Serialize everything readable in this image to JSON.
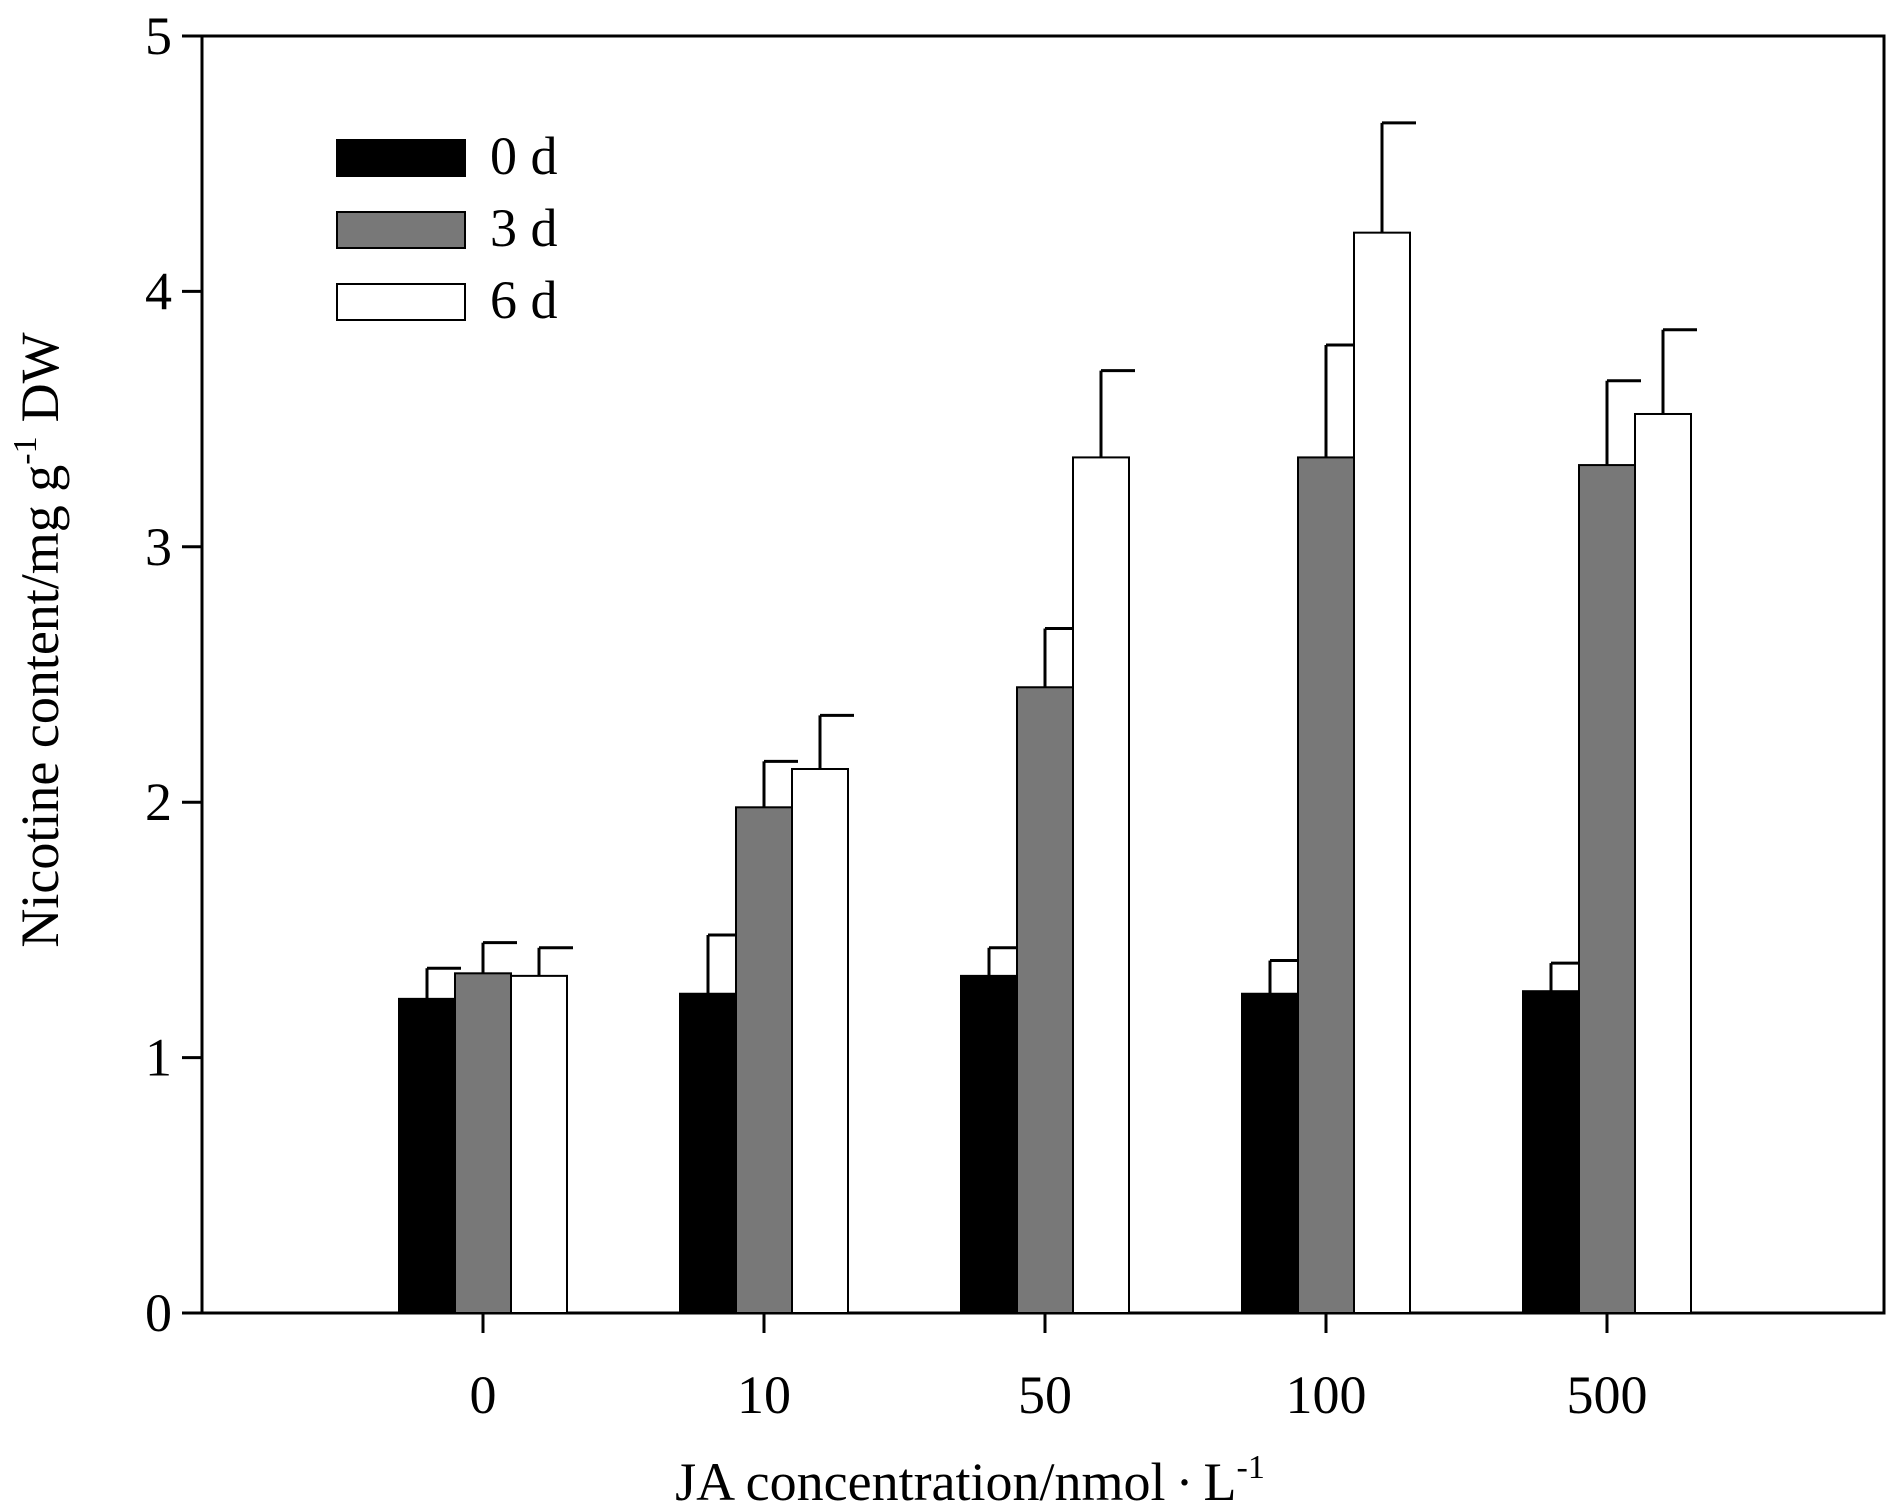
{
  "chart_data": {
    "type": "bar",
    "title": "",
    "xlabel": "JA concentration/nmol",
    "xlabel_unit_symbol": "L",
    "xlabel_unit_exponent": "-1",
    "ylabel": "Nicotine content/mg g",
    "ylabel_exponent": "-1",
    "ylabel_suffix": "DW",
    "ylim": [
      0,
      5
    ],
    "yticks": [
      0,
      1,
      2,
      3,
      4,
      5
    ],
    "categories": [
      "0",
      "10",
      "50",
      "100",
      "500"
    ],
    "legend_position": "top-left",
    "series": [
      {
        "name": "0 d",
        "color": "#000000",
        "values": [
          1.23,
          1.25,
          1.32,
          1.25,
          1.26
        ],
        "errors": [
          0.12,
          0.23,
          0.11,
          0.13,
          0.11
        ]
      },
      {
        "name": "3 d",
        "color": "#787878",
        "values": [
          1.33,
          1.98,
          2.45,
          3.35,
          3.32
        ],
        "errors": [
          0.12,
          0.18,
          0.23,
          0.44,
          0.33
        ]
      },
      {
        "name": "6 d",
        "color": "#ffffff",
        "values": [
          1.32,
          2.13,
          3.35,
          4.23,
          3.52
        ],
        "errors": [
          0.11,
          0.21,
          0.34,
          0.43,
          0.33
        ]
      }
    ]
  }
}
